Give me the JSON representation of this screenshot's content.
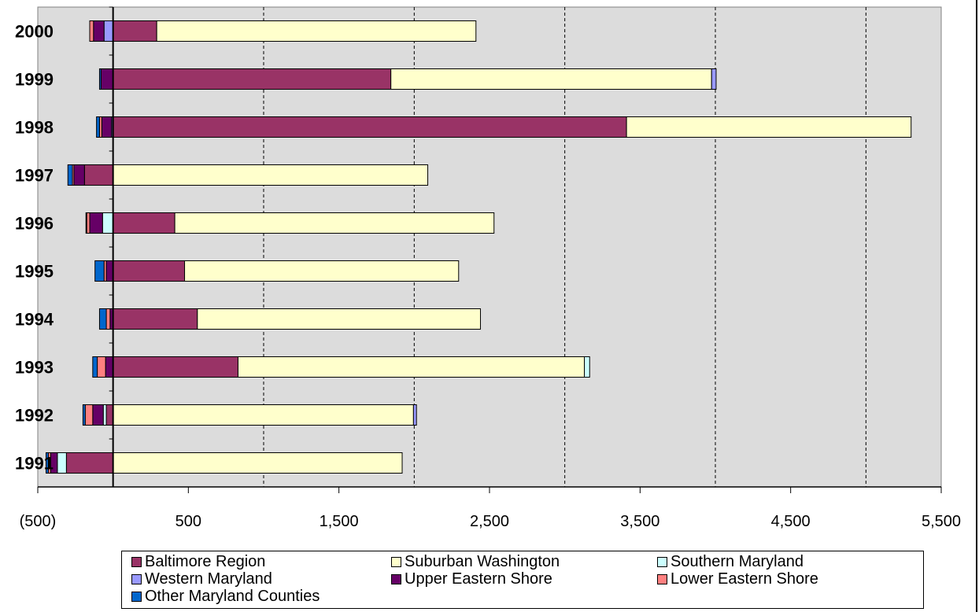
{
  "chart_data": {
    "type": "bar",
    "orientation": "horizontal",
    "stacked": true,
    "categories": [
      "2000",
      "1999",
      "1998",
      "1997",
      "1996",
      "1995",
      "1994",
      "1993",
      "1992",
      "1991"
    ],
    "xlim": [
      -500,
      5500
    ],
    "x_ticks": [
      -500,
      500,
      1500,
      2500,
      3500,
      4500,
      5500
    ],
    "x_tick_labels": [
      "(500)",
      "500",
      "1,500",
      "2,500",
      "3,500",
      "4,500",
      "5,500"
    ],
    "vertical_gridlines": [
      1000,
      2000,
      3000,
      4000,
      5000
    ],
    "grid": true,
    "legend_position": "bottom",
    "series": [
      {
        "name": "Baltimore Region",
        "color": "#993366",
        "values": [
          290,
          1845,
          3410,
          -190,
          410,
          475,
          560,
          830,
          -45,
          -310
        ]
      },
      {
        "name": "Suburban Washington",
        "color": "#ffffcc",
        "values": [
          2120,
          2130,
          1890,
          2090,
          2120,
          1820,
          1880,
          2300,
          1995,
          1920
        ]
      },
      {
        "name": "Southern Maryland",
        "color": "#ccffff",
        "values": [
          0,
          0,
          0,
          0,
          -70,
          0,
          0,
          35,
          -20,
          -60
        ]
      },
      {
        "name": "Western Maryland",
        "color": "#9999ff",
        "values": [
          -60,
          30,
          -10,
          0,
          0,
          0,
          0,
          0,
          20,
          0
        ]
      },
      {
        "name": "Upper Eastern Shore",
        "color": "#660066",
        "values": [
          -70,
          -80,
          -65,
          -70,
          -85,
          -45,
          -20,
          -50,
          -70,
          -45
        ]
      },
      {
        "name": "Lower Eastern Shore",
        "color": "#ff8080",
        "values": [
          -25,
          0,
          -15,
          -10,
          -20,
          -15,
          -25,
          -55,
          -50,
          -15
        ]
      },
      {
        "name": "Other Maryland Counties",
        "color": "#0066cc",
        "values": [
          0,
          -10,
          -20,
          -30,
          -5,
          -60,
          -45,
          -30,
          -15,
          -15
        ]
      }
    ]
  }
}
